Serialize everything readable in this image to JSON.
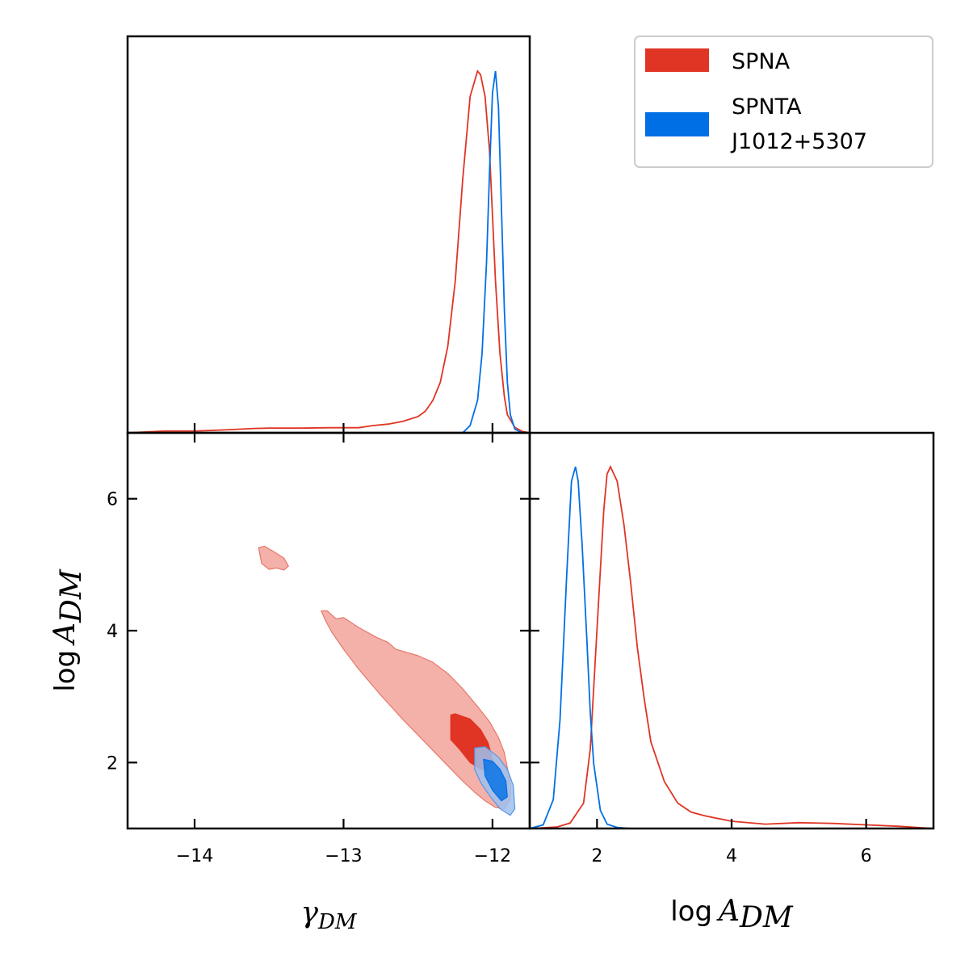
{
  "colors": {
    "spna": "#e03424",
    "spnta": "#006fe6",
    "spna_light": "#f3b1a9",
    "spnta_light": "#9ec1ee"
  },
  "legend": {
    "placement": "top-right",
    "items": [
      {
        "lines": [
          "SPNA"
        ]
      },
      {
        "lines": [
          "SPNTA",
          "J1012+5307"
        ]
      }
    ]
  },
  "chart_data": [
    {
      "panel": "1D marginal (top-left)",
      "type": "line",
      "xlabel": "",
      "ylabel": "",
      "xlim": [
        -14.45,
        -11.75
      ],
      "x_ticks": [
        -14,
        -13,
        -12
      ],
      "series": [
        {
          "name": "SPNA",
          "x": [
            -14.45,
            -14.2,
            -14.0,
            -13.8,
            -13.6,
            -13.5,
            -13.3,
            -13.1,
            -12.9,
            -12.8,
            -12.7,
            -12.6,
            -12.5,
            -12.45,
            -12.4,
            -12.35,
            -12.3,
            -12.25,
            -12.2,
            -12.15,
            -12.1,
            -12.08,
            -12.05,
            -12.02,
            -12.0,
            -11.98,
            -11.95,
            -11.92,
            -11.9,
            -11.85,
            -11.8,
            -11.75
          ],
          "y": [
            0.0,
            0.005,
            0.005,
            0.008,
            0.012,
            0.013,
            0.013,
            0.014,
            0.014,
            0.02,
            0.024,
            0.032,
            0.045,
            0.06,
            0.09,
            0.14,
            0.24,
            0.42,
            0.7,
            0.93,
            1.0,
            0.99,
            0.93,
            0.78,
            0.6,
            0.42,
            0.22,
            0.1,
            0.05,
            0.015,
            0.004,
            0.0
          ]
        },
        {
          "name": "SPNTA J1012+5307",
          "x": [
            -12.3,
            -12.2,
            -12.15,
            -12.1,
            -12.07,
            -12.04,
            -12.02,
            -12.0,
            -11.98,
            -11.96,
            -11.94,
            -11.92,
            -11.9,
            -11.88,
            -11.85,
            -11.8
          ],
          "y": [
            0.0,
            0.0,
            0.02,
            0.09,
            0.22,
            0.47,
            0.72,
            0.94,
            1.0,
            0.9,
            0.62,
            0.34,
            0.14,
            0.05,
            0.01,
            0.0
          ]
        }
      ]
    },
    {
      "panel": "2D contours (bottom-left)",
      "type": "area",
      "xlabel": "γ_DM",
      "ylabel": "log A_DM",
      "xlim": [
        -14.45,
        -11.75
      ],
      "ylim": [
        1.0,
        7.0
      ],
      "x_ticks": [
        -14,
        -13,
        -12
      ],
      "y_ticks": [
        2,
        4,
        6
      ],
      "series": [
        {
          "name": "SPNA 95%",
          "polygons": [
            {
              "x": [
                -13.57,
                -13.53,
                -13.47,
                -13.4,
                -13.37,
                -13.4,
                -13.45,
                -13.5,
                -13.55,
                -13.57
              ],
              "y": [
                5.26,
                5.28,
                5.2,
                5.1,
                4.98,
                4.92,
                4.95,
                4.93,
                5.02,
                5.26
              ]
            },
            {
              "x": [
                -13.15,
                -13.11,
                -13.05,
                -13.0,
                -12.9,
                -12.78,
                -12.7,
                -12.65,
                -12.5,
                -12.4,
                -12.3,
                -12.2,
                -12.1,
                -12.02,
                -11.96,
                -11.92,
                -11.9,
                -11.88,
                -11.88,
                -11.92,
                -11.98,
                -12.05,
                -12.12,
                -12.2,
                -12.3,
                -12.45,
                -12.6,
                -12.75,
                -12.9,
                -13.0,
                -13.08,
                -13.12,
                -13.15
              ],
              "y": [
                4.3,
                4.3,
                4.18,
                4.2,
                4.05,
                3.9,
                3.82,
                3.72,
                3.62,
                3.52,
                3.35,
                3.12,
                2.85,
                2.62,
                2.38,
                2.15,
                1.92,
                1.68,
                1.45,
                1.3,
                1.32,
                1.42,
                1.55,
                1.72,
                1.95,
                2.3,
                2.65,
                3.02,
                3.42,
                3.72,
                3.98,
                4.15,
                4.3
              ]
            }
          ]
        },
        {
          "name": "SPNA 68%",
          "polygons": [
            {
              "x": [
                -12.28,
                -12.25,
                -12.15,
                -12.08,
                -12.03,
                -12.0,
                -12.03,
                -12.08,
                -12.15,
                -12.22,
                -12.28,
                -12.28
              ],
              "y": [
                2.72,
                2.74,
                2.66,
                2.5,
                2.3,
                2.05,
                1.9,
                1.9,
                2.0,
                2.2,
                2.35,
                2.72
              ]
            }
          ]
        },
        {
          "name": "SPNTA 95%",
          "polygons": [
            {
              "x": [
                -12.12,
                -12.05,
                -11.96,
                -11.9,
                -11.86,
                -11.85,
                -11.88,
                -11.95,
                -12.02,
                -12.08,
                -12.12,
                -12.12
              ],
              "y": [
                2.22,
                2.24,
                2.08,
                1.9,
                1.65,
                1.3,
                1.2,
                1.3,
                1.5,
                1.7,
                1.9,
                2.22
              ]
            }
          ]
        },
        {
          "name": "SPNTA 68%",
          "polygons": [
            {
              "x": [
                -12.06,
                -12.0,
                -11.95,
                -11.91,
                -11.9,
                -11.94,
                -12.0,
                -12.05,
                -12.06
              ],
              "y": [
                2.05,
                2.02,
                1.9,
                1.72,
                1.48,
                1.42,
                1.58,
                1.8,
                2.05
              ]
            }
          ]
        }
      ]
    },
    {
      "panel": "1D marginal (bottom-right)",
      "type": "line",
      "xlabel": "log A_DM",
      "ylabel": "",
      "xlim": [
        1.0,
        7.0
      ],
      "x_ticks": [
        2,
        4,
        6
      ],
      "series": [
        {
          "name": "SPNA",
          "x": [
            1.0,
            1.4,
            1.6,
            1.8,
            1.9,
            2.0,
            2.1,
            2.15,
            2.2,
            2.3,
            2.4,
            2.5,
            2.6,
            2.7,
            2.8,
            3.0,
            3.2,
            3.4,
            3.6,
            4.0,
            4.5,
            5.0,
            5.5,
            6.0,
            6.5,
            7.0
          ],
          "y": [
            0.0,
            0.004,
            0.015,
            0.07,
            0.22,
            0.55,
            0.88,
            0.98,
            1.0,
            0.96,
            0.84,
            0.68,
            0.5,
            0.36,
            0.24,
            0.13,
            0.07,
            0.045,
            0.035,
            0.02,
            0.012,
            0.016,
            0.014,
            0.01,
            0.006,
            0.0
          ]
        },
        {
          "name": "SPNTA J1012+5307",
          "x": [
            1.0,
            1.2,
            1.35,
            1.45,
            1.55,
            1.62,
            1.68,
            1.72,
            1.78,
            1.85,
            1.9,
            1.95,
            2.05,
            2.15,
            2.3,
            2.5,
            3.0
          ],
          "y": [
            0.0,
            0.01,
            0.08,
            0.3,
            0.7,
            0.96,
            1.0,
            0.96,
            0.78,
            0.52,
            0.32,
            0.18,
            0.05,
            0.012,
            0.003,
            0.0,
            0.0
          ]
        }
      ]
    }
  ]
}
